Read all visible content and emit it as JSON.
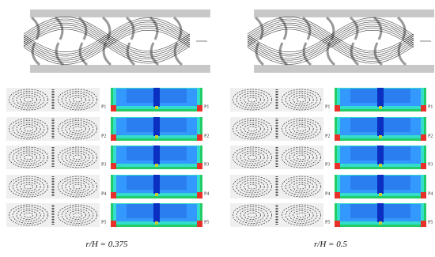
{
  "panels": [
    {
      "caption": "r/H = 0.375",
      "rows": [
        {
          "vector_label": "P1",
          "contour_label": "P1"
        },
        {
          "vector_label": "P2",
          "contour_label": "P2"
        },
        {
          "vector_label": "P3",
          "contour_label": "P3"
        },
        {
          "vector_label": "P4",
          "contour_label": "P4"
        },
        {
          "vector_label": "P5",
          "contour_label": "P5"
        }
      ]
    },
    {
      "caption": "r/H = 0.5",
      "rows": [
        {
          "vector_label": "P1",
          "contour_label": "P1"
        },
        {
          "vector_label": "P2",
          "contour_label": "P2"
        },
        {
          "vector_label": "P3",
          "contour_label": "P3"
        },
        {
          "vector_label": "P4",
          "contour_label": "P4"
        },
        {
          "vector_label": "P5",
          "contour_label": "P5"
        }
      ]
    }
  ]
}
